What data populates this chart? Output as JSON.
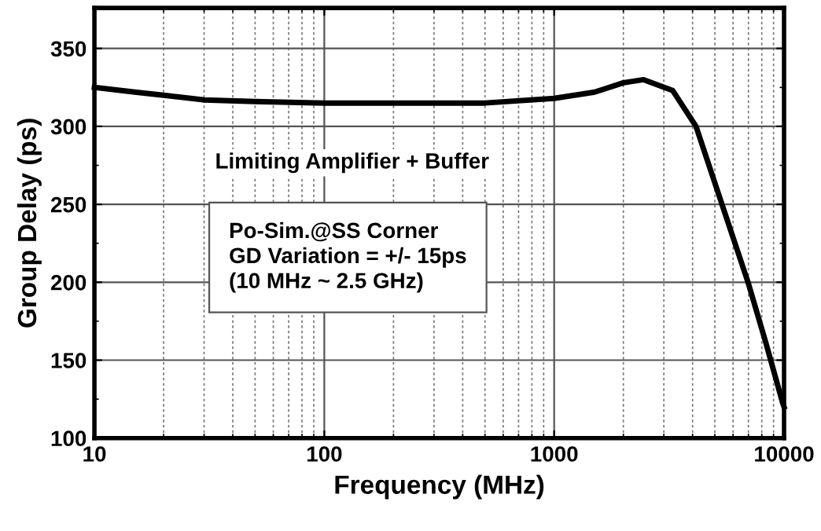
{
  "chart_data": {
    "type": "line",
    "xlabel": "Frequency (MHz)",
    "ylabel": "Group Delay (ps)",
    "x": [
      10,
      15,
      20,
      30,
      50,
      100,
      300,
      500,
      1000,
      1500,
      2000,
      2450,
      3280,
      4140,
      5370,
      6970,
      8340,
      9840,
      10000
    ],
    "series": [
      {
        "color": "#000000",
        "values": [
          325,
          322,
          320,
          317,
          316,
          315,
          315,
          315,
          318,
          322,
          328,
          330,
          323,
          300,
          250,
          200,
          161,
          123,
          120
        ]
      }
    ],
    "log": "x",
    "xlim": [
      10,
      10000
    ],
    "xticks": [
      10,
      100,
      1000,
      10000
    ],
    "ylim": [
      100,
      376
    ],
    "yticks": [
      100,
      150,
      200,
      250,
      300,
      350
    ],
    "grid": true,
    "marker": "none",
    "line_style": "solid",
    "legend": false,
    "annotations": [
      "Limiting Amplifier + Buffer",
      "Po-Sim.@SS Corner\nGD Variation = +/- 15ps\n(10 MHz ~ 2.5 GHz)"
    ]
  }
}
